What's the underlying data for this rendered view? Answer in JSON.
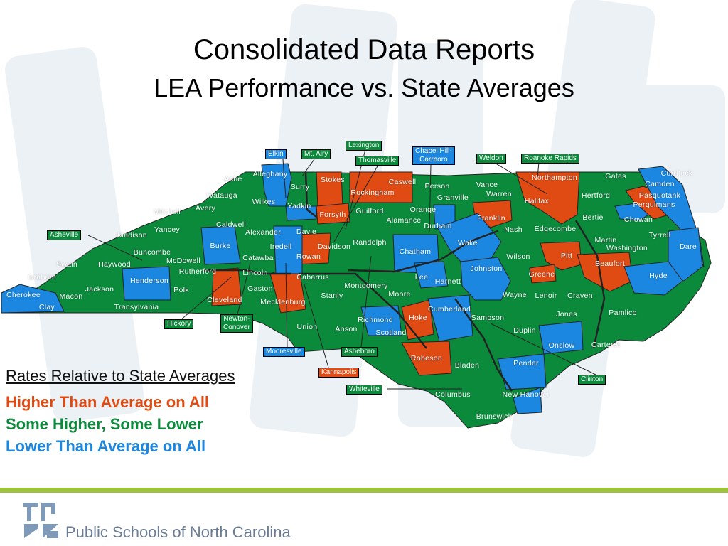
{
  "title": "Consolidated Data Reports",
  "subtitle": "LEA Performance vs. State Averages",
  "colors": {
    "higher": "#e04b14",
    "mixed": "#0b8a3c",
    "lower": "#1b87e0",
    "border": "#222222",
    "footer_rule": "#9cc13a",
    "footer_text": "#6a7d95"
  },
  "legend": {
    "heading": "Rates Relative to State Averages",
    "items": [
      {
        "key": "higher",
        "label": "Higher Than Average on All"
      },
      {
        "key": "mixed",
        "label": "Some Higher, Some Lower"
      },
      {
        "key": "lower",
        "label": "Lower Than Average on All"
      }
    ]
  },
  "county_labels": [
    {
      "name": "Ashe",
      "cat": "mixed"
    },
    {
      "name": "Alleghany",
      "cat": "mixed"
    },
    {
      "name": "Surry",
      "cat": "lower"
    },
    {
      "name": "Stokes",
      "cat": "mixed"
    },
    {
      "name": "Rockingham",
      "cat": "higher"
    },
    {
      "name": "Caswell",
      "cat": "higher"
    },
    {
      "name": "Person",
      "cat": "mixed"
    },
    {
      "name": "Granville",
      "cat": "mixed"
    },
    {
      "name": "Vance",
      "cat": "mixed"
    },
    {
      "name": "Warren",
      "cat": "mixed"
    },
    {
      "name": "Northampton",
      "cat": "higher"
    },
    {
      "name": "Gates",
      "cat": "mixed"
    },
    {
      "name": "Currituck",
      "cat": "lower"
    },
    {
      "name": "Camden",
      "cat": "lower"
    },
    {
      "name": "Pasquotank",
      "cat": "higher"
    },
    {
      "name": "Perquimans",
      "cat": "higher"
    },
    {
      "name": "Chowan",
      "cat": "lower"
    },
    {
      "name": "Hertford",
      "cat": "mixed"
    },
    {
      "name": "Halifax",
      "cat": "higher"
    },
    {
      "name": "Bertie",
      "cat": "mixed"
    },
    {
      "name": "Watauga",
      "cat": "mixed"
    },
    {
      "name": "Wilkes",
      "cat": "mixed"
    },
    {
      "name": "Yadkin",
      "cat": "lower"
    },
    {
      "name": "Forsyth",
      "cat": "higher"
    },
    {
      "name": "Guilford",
      "cat": "mixed"
    },
    {
      "name": "Orange",
      "cat": "mixed"
    },
    {
      "name": "Alamance",
      "cat": "mixed"
    },
    {
      "name": "Durham",
      "cat": "lower"
    },
    {
      "name": "Franklin",
      "cat": "higher"
    },
    {
      "name": "Nash",
      "cat": "mixed"
    },
    {
      "name": "Edgecombe",
      "cat": "mixed"
    },
    {
      "name": "Martin",
      "cat": "mixed"
    },
    {
      "name": "Tyrrell",
      "cat": "mixed"
    },
    {
      "name": "Washington",
      "cat": "mixed"
    },
    {
      "name": "Dare",
      "cat": "lower"
    },
    {
      "name": "Mitchell",
      "cat": "mixed"
    },
    {
      "name": "Avery",
      "cat": "mixed"
    },
    {
      "name": "Caldwell",
      "cat": "mixed"
    },
    {
      "name": "Alexander",
      "cat": "mixed"
    },
    {
      "name": "Davie",
      "cat": "mixed"
    },
    {
      "name": "Davidson",
      "cat": "mixed"
    },
    {
      "name": "Randolph",
      "cat": "mixed"
    },
    {
      "name": "Chatham",
      "cat": "lower"
    },
    {
      "name": "Wake",
      "cat": "lower"
    },
    {
      "name": "Johnston",
      "cat": "lower"
    },
    {
      "name": "Wilson",
      "cat": "mixed"
    },
    {
      "name": "Pitt",
      "cat": "higher"
    },
    {
      "name": "Beaufort",
      "cat": "higher"
    },
    {
      "name": "Hyde",
      "cat": "lower"
    },
    {
      "name": "Madison",
      "cat": "mixed"
    },
    {
      "name": "Yancey",
      "cat": "mixed"
    },
    {
      "name": "Burke",
      "cat": "lower"
    },
    {
      "name": "Iredell",
      "cat": "lower"
    },
    {
      "name": "Rowan",
      "cat": "higher"
    },
    {
      "name": "Catawba",
      "cat": "mixed"
    },
    {
      "name": "Buncombe",
      "cat": "mixed"
    },
    {
      "name": "McDowell",
      "cat": "mixed"
    },
    {
      "name": "Swain",
      "cat": "mixed"
    },
    {
      "name": "Haywood",
      "cat": "mixed"
    },
    {
      "name": "Graham",
      "cat": "mixed"
    },
    {
      "name": "Rutherford",
      "cat": "mixed"
    },
    {
      "name": "Lincoln",
      "cat": "mixed"
    },
    {
      "name": "Cabarrus",
      "cat": "higher"
    },
    {
      "name": "Montgomery",
      "cat": "mixed"
    },
    {
      "name": "Lee",
      "cat": "lower"
    },
    {
      "name": "Harnett",
      "cat": "lower"
    },
    {
      "name": "Greene",
      "cat": "higher"
    },
    {
      "name": "Henderson",
      "cat": "lower"
    },
    {
      "name": "Jackson",
      "cat": "mixed"
    },
    {
      "name": "Polk",
      "cat": "mixed"
    },
    {
      "name": "Gaston",
      "cat": "mixed"
    },
    {
      "name": "Stanly",
      "cat": "mixed"
    },
    {
      "name": "Moore",
      "cat": "mixed"
    },
    {
      "name": "Wayne",
      "cat": "mixed"
    },
    {
      "name": "Lenoir",
      "cat": "mixed"
    },
    {
      "name": "Craven",
      "cat": "mixed"
    },
    {
      "name": "Cherokee",
      "cat": "lower"
    },
    {
      "name": "Macon",
      "cat": "mixed"
    },
    {
      "name": "Clay",
      "cat": "lower"
    },
    {
      "name": "Transylvania",
      "cat": "mixed"
    },
    {
      "name": "Cleveland",
      "cat": "higher"
    },
    {
      "name": "Mecklenburg",
      "cat": "higher"
    },
    {
      "name": "Cumberland",
      "cat": "lower"
    },
    {
      "name": "Jones",
      "cat": "mixed"
    },
    {
      "name": "Pamlico",
      "cat": "mixed"
    },
    {
      "name": "Richmond",
      "cat": "lower"
    },
    {
      "name": "Hoke",
      "cat": "higher"
    },
    {
      "name": "Sampson",
      "cat": "mixed"
    },
    {
      "name": "Union",
      "cat": "mixed"
    },
    {
      "name": "Anson",
      "cat": "mixed"
    },
    {
      "name": "Scotland",
      "cat": "lower"
    },
    {
      "name": "Duplin",
      "cat": "mixed"
    },
    {
      "name": "Onslow",
      "cat": "lower"
    },
    {
      "name": "Carteret",
      "cat": "mixed"
    },
    {
      "name": "Robeson",
      "cat": "higher"
    },
    {
      "name": "Bladen",
      "cat": "mixed"
    },
    {
      "name": "Pender",
      "cat": "lower"
    },
    {
      "name": "Columbus",
      "cat": "mixed"
    },
    {
      "name": "New Hanover",
      "cat": "lower"
    },
    {
      "name": "Brunswick",
      "cat": "mixed"
    }
  ],
  "callouts": [
    {
      "name": "Elkin",
      "cat": "lower"
    },
    {
      "name": "Mt. Airy",
      "cat": "mixed"
    },
    {
      "name": "Lexington",
      "cat": "mixed"
    },
    {
      "name": "Thomasville",
      "cat": "mixed"
    },
    {
      "name": "Chapel Hill-\nCarrboro",
      "cat": "lower"
    },
    {
      "name": "Weldon",
      "cat": "mixed"
    },
    {
      "name": "Roanoke Rapids",
      "cat": "mixed"
    },
    {
      "name": "Asheville",
      "cat": "mixed"
    },
    {
      "name": "Hickory",
      "cat": "mixed"
    },
    {
      "name": "Newton-\nConover",
      "cat": "mixed"
    },
    {
      "name": "Mooresville",
      "cat": "lower"
    },
    {
      "name": "Asheboro",
      "cat": "mixed"
    },
    {
      "name": "Kannapolis",
      "cat": "higher"
    },
    {
      "name": "Whiteville",
      "cat": "mixed"
    },
    {
      "name": "Clinton",
      "cat": "mixed"
    }
  ],
  "footer": {
    "org": "Public Schools of North Carolina"
  }
}
